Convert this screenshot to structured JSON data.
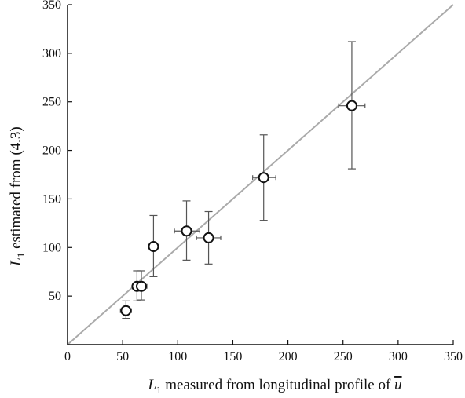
{
  "chart_data": {
    "type": "scatter",
    "title": "",
    "xlabel": {
      "main": "L",
      "sub": "1",
      "rest": " measured from longitudinal profile of ",
      "var": "u"
    },
    "ylabel": {
      "main": "L",
      "sub": "1",
      "rest": " estimated from (4.3)"
    },
    "xlim": [
      0,
      350
    ],
    "ylim": [
      0,
      350
    ],
    "xticks": [
      0,
      50,
      100,
      150,
      200,
      250,
      300,
      350
    ],
    "yticks": [
      50,
      100,
      150,
      200,
      250,
      300,
      350
    ],
    "grid": false,
    "reference_line": {
      "type": "y=x",
      "color": "#aaaaaa"
    },
    "points": [
      {
        "x": 53,
        "y": 35,
        "yerr_low": 27,
        "yerr_high": 45,
        "xerr_low": 48,
        "xerr_high": 58
      },
      {
        "x": 63,
        "y": 60,
        "yerr_low": 45,
        "yerr_high": 76,
        "xerr_low": 59,
        "xerr_high": 67
      },
      {
        "x": 67,
        "y": 60,
        "yerr_low": 46,
        "yerr_high": 76,
        "xerr_low": 62,
        "xerr_high": 72
      },
      {
        "x": 78,
        "y": 101,
        "yerr_low": 70,
        "yerr_high": 133,
        "xerr_low": 74,
        "xerr_high": 82
      },
      {
        "x": 108,
        "y": 117,
        "yerr_low": 87,
        "yerr_high": 148,
        "xerr_low": 97,
        "xerr_high": 120
      },
      {
        "x": 128,
        "y": 110,
        "yerr_low": 83,
        "yerr_high": 137,
        "xerr_low": 117,
        "xerr_high": 139
      },
      {
        "x": 178,
        "y": 172,
        "yerr_low": 128,
        "yerr_high": 216,
        "xerr_low": 168,
        "xerr_high": 189
      },
      {
        "x": 258,
        "y": 246,
        "yerr_low": 181,
        "yerr_high": 312,
        "xerr_low": 246,
        "xerr_high": 270
      }
    ]
  },
  "style": {
    "axis_color": "#111111",
    "line_color": "#aaaaaa",
    "marker_color": "#111111",
    "errorbar_color": "#555555"
  }
}
